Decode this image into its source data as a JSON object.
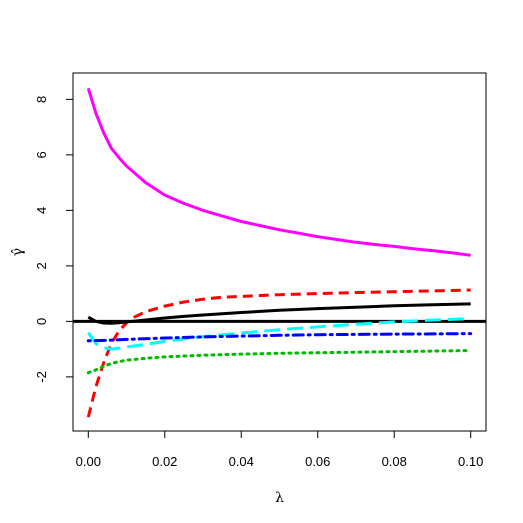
{
  "chart_data": {
    "type": "line",
    "title": "",
    "xlabel": "λ",
    "ylabel": "γ̂",
    "xlim": [
      -0.004,
      0.104
    ],
    "ylim": [
      -3.95,
      8.95
    ],
    "xticks": [
      0.0,
      0.02,
      0.04,
      0.06,
      0.08,
      0.1
    ],
    "xtick_labels": [
      "0.00",
      "0.02",
      "0.04",
      "0.06",
      "0.08",
      "0.10"
    ],
    "yticks": [
      -2,
      0,
      2,
      4,
      6,
      8
    ],
    "ytick_labels": [
      "-2",
      "0",
      "2",
      "4",
      "6",
      "8"
    ],
    "grid": false,
    "legend": false,
    "reference_line": {
      "y": 0,
      "color": "#000000"
    },
    "series": [
      {
        "color": "#ff00ff",
        "style": "solid",
        "x": [
          0.0,
          0.002,
          0.004,
          0.006,
          0.008,
          0.01,
          0.015,
          0.02,
          0.025,
          0.03,
          0.035,
          0.04,
          0.045,
          0.05,
          0.055,
          0.06,
          0.065,
          0.07,
          0.075,
          0.08,
          0.085,
          0.09,
          0.095,
          0.1
        ],
        "y": [
          8.4,
          7.5,
          6.8,
          6.25,
          5.9,
          5.6,
          5.0,
          4.55,
          4.25,
          4.0,
          3.8,
          3.6,
          3.45,
          3.3,
          3.18,
          3.05,
          2.95,
          2.85,
          2.77,
          2.7,
          2.62,
          2.55,
          2.47,
          2.38
        ]
      },
      {
        "color": "#ff0000",
        "style": "dashed",
        "x": [
          0.0,
          0.002,
          0.004,
          0.006,
          0.008,
          0.01,
          0.012,
          0.015,
          0.02,
          0.025,
          0.03,
          0.035,
          0.04,
          0.05,
          0.06,
          0.07,
          0.08,
          0.09,
          0.1
        ],
        "y": [
          -3.45,
          -2.35,
          -1.5,
          -0.8,
          -0.35,
          -0.05,
          0.15,
          0.35,
          0.55,
          0.7,
          0.8,
          0.87,
          0.9,
          0.96,
          1.0,
          1.04,
          1.07,
          1.1,
          1.13
        ]
      },
      {
        "color": "#000000",
        "style": "solid",
        "x": [
          0.0,
          0.002,
          0.004,
          0.006,
          0.008,
          0.01,
          0.015,
          0.02,
          0.025,
          0.03,
          0.04,
          0.05,
          0.06,
          0.07,
          0.08,
          0.09,
          0.1
        ],
        "y": [
          0.15,
          0.0,
          -0.06,
          -0.07,
          -0.05,
          -0.02,
          0.05,
          0.12,
          0.18,
          0.23,
          0.32,
          0.4,
          0.46,
          0.51,
          0.56,
          0.6,
          0.63
        ]
      },
      {
        "color": "#00ffff",
        "style": "longdash",
        "x": [
          0.0,
          0.001,
          0.002,
          0.004,
          0.006,
          0.008,
          0.01,
          0.015,
          0.02,
          0.025,
          0.03,
          0.04,
          0.05,
          0.06,
          0.07,
          0.08,
          0.09,
          0.1
        ],
        "y": [
          -0.4,
          -0.6,
          -0.8,
          -0.95,
          -1.0,
          -0.97,
          -0.92,
          -0.83,
          -0.72,
          -0.63,
          -0.55,
          -0.42,
          -0.3,
          -0.2,
          -0.1,
          -0.02,
          0.05,
          0.1
        ]
      },
      {
        "color": "#0000ff",
        "style": "dotdash",
        "x": [
          0.0,
          0.005,
          0.01,
          0.02,
          0.03,
          0.04,
          0.05,
          0.06,
          0.07,
          0.08,
          0.09,
          0.1
        ],
        "y": [
          -0.7,
          -0.68,
          -0.65,
          -0.6,
          -0.56,
          -0.53,
          -0.5,
          -0.48,
          -0.47,
          -0.46,
          -0.45,
          -0.44
        ]
      },
      {
        "color": "#00bb00",
        "style": "dotted",
        "x": [
          0.0,
          0.002,
          0.004,
          0.006,
          0.008,
          0.01,
          0.015,
          0.02,
          0.03,
          0.04,
          0.05,
          0.06,
          0.07,
          0.08,
          0.09,
          0.1
        ],
        "y": [
          -1.85,
          -1.75,
          -1.62,
          -1.52,
          -1.45,
          -1.4,
          -1.33,
          -1.28,
          -1.22,
          -1.18,
          -1.15,
          -1.13,
          -1.11,
          -1.09,
          -1.07,
          -1.05
        ]
      }
    ]
  }
}
